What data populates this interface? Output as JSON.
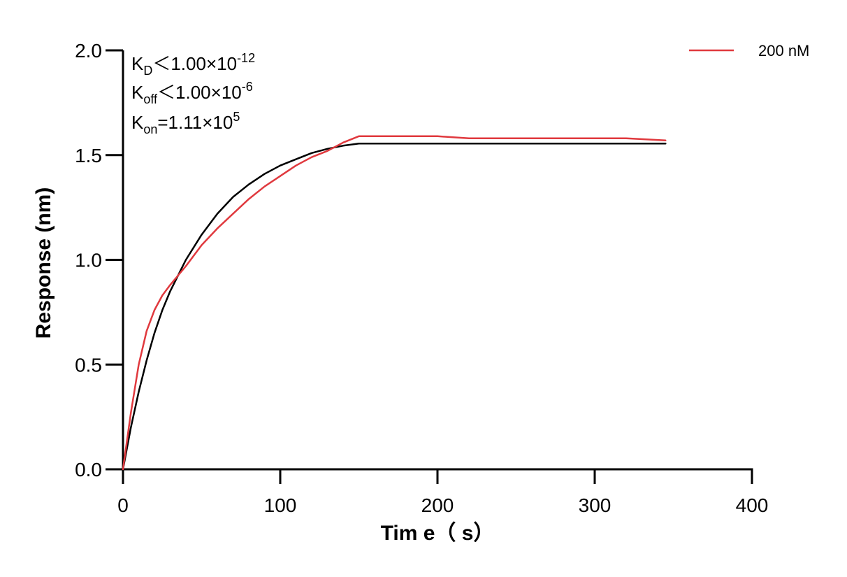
{
  "chart_data": {
    "type": "line",
    "xlabel": "Tim e（ s）",
    "ylabel": "Response (nm)",
    "xlim": [
      0,
      400
    ],
    "ylim": [
      0,
      2.0
    ],
    "x_ticks": [
      "0",
      "100",
      "200",
      "300",
      "400"
    ],
    "y_ticks": [
      "0.0",
      "0.5",
      "1.0",
      "1.5",
      "2.0"
    ],
    "grid": false,
    "legend_position": "top-right",
    "annotations": {
      "kd": {
        "base": "K",
        "sub": "D",
        "rel": "＜1.00×10",
        "exp": "-12"
      },
      "koff": {
        "base": "K",
        "sub": "off",
        "rel": "＜1.00×10",
        "exp": "-6"
      },
      "kon": {
        "base": "K",
        "sub": "on",
        "rel": "=1.11×10",
        "exp": "5"
      }
    },
    "series": [
      {
        "name": "200 nM",
        "color": "#e0393e",
        "x": [
          0,
          5,
          10,
          15,
          20,
          25,
          30,
          40,
          50,
          60,
          70,
          80,
          90,
          100,
          110,
          120,
          130,
          140,
          150,
          160,
          180,
          200,
          220,
          240,
          260,
          280,
          300,
          320,
          345
        ],
        "y": [
          0,
          0.27,
          0.5,
          0.66,
          0.76,
          0.83,
          0.88,
          0.97,
          1.07,
          1.15,
          1.22,
          1.29,
          1.35,
          1.4,
          1.45,
          1.49,
          1.52,
          1.56,
          1.59,
          1.59,
          1.59,
          1.59,
          1.58,
          1.58,
          1.58,
          1.58,
          1.58,
          1.58,
          1.57
        ]
      },
      {
        "color": "#000000",
        "x": [
          0,
          5,
          10,
          15,
          20,
          25,
          30,
          40,
          50,
          60,
          70,
          80,
          90,
          100,
          110,
          120,
          130,
          140,
          150,
          160,
          200,
          250,
          300,
          345
        ],
        "y": [
          0,
          0.2,
          0.37,
          0.52,
          0.65,
          0.76,
          0.85,
          1.0,
          1.12,
          1.22,
          1.3,
          1.36,
          1.41,
          1.45,
          1.48,
          1.51,
          1.53,
          1.545,
          1.555,
          1.555,
          1.555,
          1.555,
          1.555,
          1.555
        ]
      }
    ]
  }
}
